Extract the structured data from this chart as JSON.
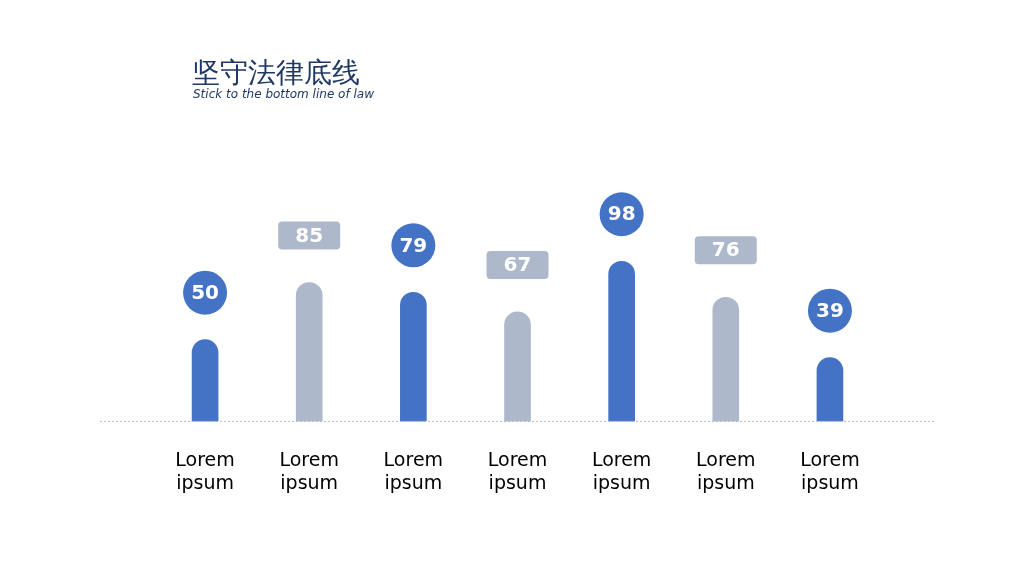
{
  "chart_data": {
    "type": "bar",
    "title": "坚守法律底线",
    "subtitle": "Stick to the bottom line of law",
    "categories": [
      "Lorem ipsum",
      "Lorem ipsum",
      "Lorem ipsum",
      "Lorem ipsum",
      "Lorem ipsum",
      "Lorem ipsum",
      "Lorem ipsum"
    ],
    "values": [
      50,
      85,
      79,
      67,
      98,
      76,
      39
    ],
    "colors": [
      "#4472c4",
      "#adb9ca",
      "#4472c4",
      "#adb9ca",
      "#4472c4",
      "#adb9ca",
      "#4472c4"
    ],
    "data_labels": true,
    "legend": false
  }
}
